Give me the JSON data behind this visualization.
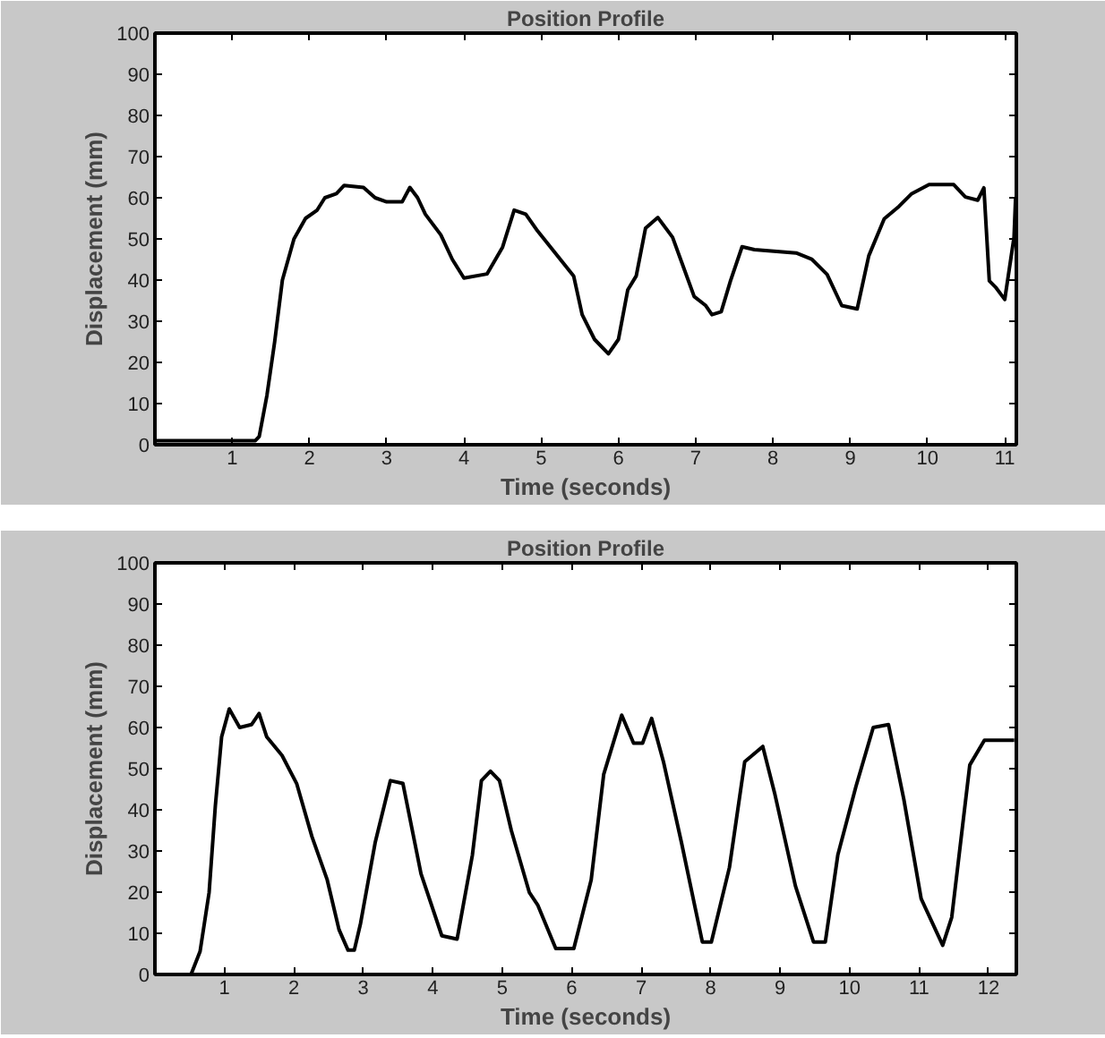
{
  "chart_data": [
    {
      "type": "line",
      "title": "Position Profile",
      "xlabel": "Time (seconds)",
      "ylabel": "Displacement (mm)",
      "color": "#000000",
      "x": [
        0,
        1.3,
        1.35,
        1.45,
        1.55,
        1.65,
        1.8,
        1.95,
        2.1,
        2.2,
        2.35,
        2.45,
        2.7,
        2.85,
        3.0,
        3.2,
        3.3,
        3.4,
        3.5,
        3.7,
        3.85,
        4.0,
        4.3,
        4.5,
        4.65,
        4.8,
        4.95,
        5.42,
        5.53,
        5.69,
        5.87,
        6.0,
        6.12,
        6.23,
        6.35,
        6.51,
        6.7,
        6.98,
        7.13,
        7.21,
        7.33,
        7.45,
        7.6,
        7.76,
        8.3,
        8.5,
        8.7,
        8.89,
        9.09,
        9.24,
        9.44,
        9.63,
        9.79,
        10.02,
        10.34,
        10.49,
        10.65,
        10.73,
        10.8,
        10.88,
        11.0,
        11.12,
        11.14
      ],
      "values": [
        1,
        1,
        2,
        12,
        25,
        40,
        50,
        55,
        57,
        60,
        61,
        63,
        62.5,
        60,
        59,
        59,
        62.5,
        60,
        56,
        51,
        45,
        40.5,
        41.5,
        48,
        57,
        56,
        52,
        41,
        31.6,
        25.6,
        22.1,
        25.6,
        37.6,
        41,
        52.6,
        55.2,
        50.4,
        36,
        33.8,
        31.6,
        32.3,
        39.8,
        48.1,
        47.4,
        46.6,
        45.1,
        41.4,
        33.8,
        33,
        45.9,
        54.9,
        57.9,
        60.9,
        63.2,
        63.2,
        60.2,
        59.4,
        62.4,
        39.8,
        38.3,
        35.3,
        50.4,
        60
      ],
      "xlim": [
        0,
        11.15
      ],
      "ylim": [
        0,
        100
      ],
      "xticks": [
        1,
        2,
        3,
        4,
        5,
        6,
        7,
        8,
        9,
        10,
        11
      ],
      "yticks": [
        0,
        10,
        20,
        30,
        40,
        50,
        60,
        70,
        80,
        90,
        100
      ]
    },
    {
      "type": "line",
      "title": "Position Profile",
      "xlabel": "Time (seconds)",
      "ylabel": "Displacement (mm)",
      "color": "#000000",
      "x": [
        0.52,
        0.65,
        0.78,
        0.87,
        0.96,
        1.07,
        1.22,
        1.39,
        1.5,
        1.61,
        1.83,
        2.04,
        2.26,
        2.48,
        2.65,
        2.78,
        2.87,
        2.96,
        3.17,
        3.39,
        3.57,
        3.83,
        4.13,
        4.35,
        4.57,
        4.7,
        4.83,
        4.96,
        5.13,
        5.39,
        5.51,
        5.77,
        6.03,
        6.28,
        6.46,
        6.72,
        6.89,
        7.02,
        7.15,
        7.32,
        7.58,
        7.88,
        8.01,
        8.27,
        8.49,
        8.75,
        8.92,
        9.22,
        9.48,
        9.65,
        9.83,
        10.09,
        10.34,
        10.56,
        10.78,
        11.03,
        11.34,
        11.47,
        11.73,
        11.94,
        12.37
      ],
      "values": [
        0,
        5.6,
        19.9,
        41,
        57.7,
        64.5,
        60,
        60.7,
        63.4,
        57.7,
        53.2,
        46.4,
        33.5,
        23,
        10.9,
        5.9,
        5.9,
        12.4,
        32,
        47.1,
        46.4,
        24.5,
        9.4,
        8.6,
        29,
        47.1,
        49.4,
        47.1,
        35,
        19.9,
        16.9,
        6.3,
        6.3,
        23,
        48.6,
        63,
        56.2,
        56.2,
        62.2,
        51.7,
        32,
        7.9,
        7.9,
        26,
        51.7,
        55.4,
        44.1,
        21.5,
        7.9,
        7.9,
        29,
        45.6,
        60,
        60.7,
        42.6,
        18.4,
        7.1,
        13.9,
        50.9,
        56.9,
        56.9
      ],
      "xlim": [
        0,
        12.4
      ],
      "ylim": [
        0,
        100
      ],
      "xticks": [
        1,
        2,
        3,
        4,
        5,
        6,
        7,
        8,
        9,
        10,
        11,
        12
      ],
      "yticks": [
        0,
        10,
        20,
        30,
        40,
        50,
        60,
        70,
        80,
        90,
        100
      ]
    }
  ]
}
